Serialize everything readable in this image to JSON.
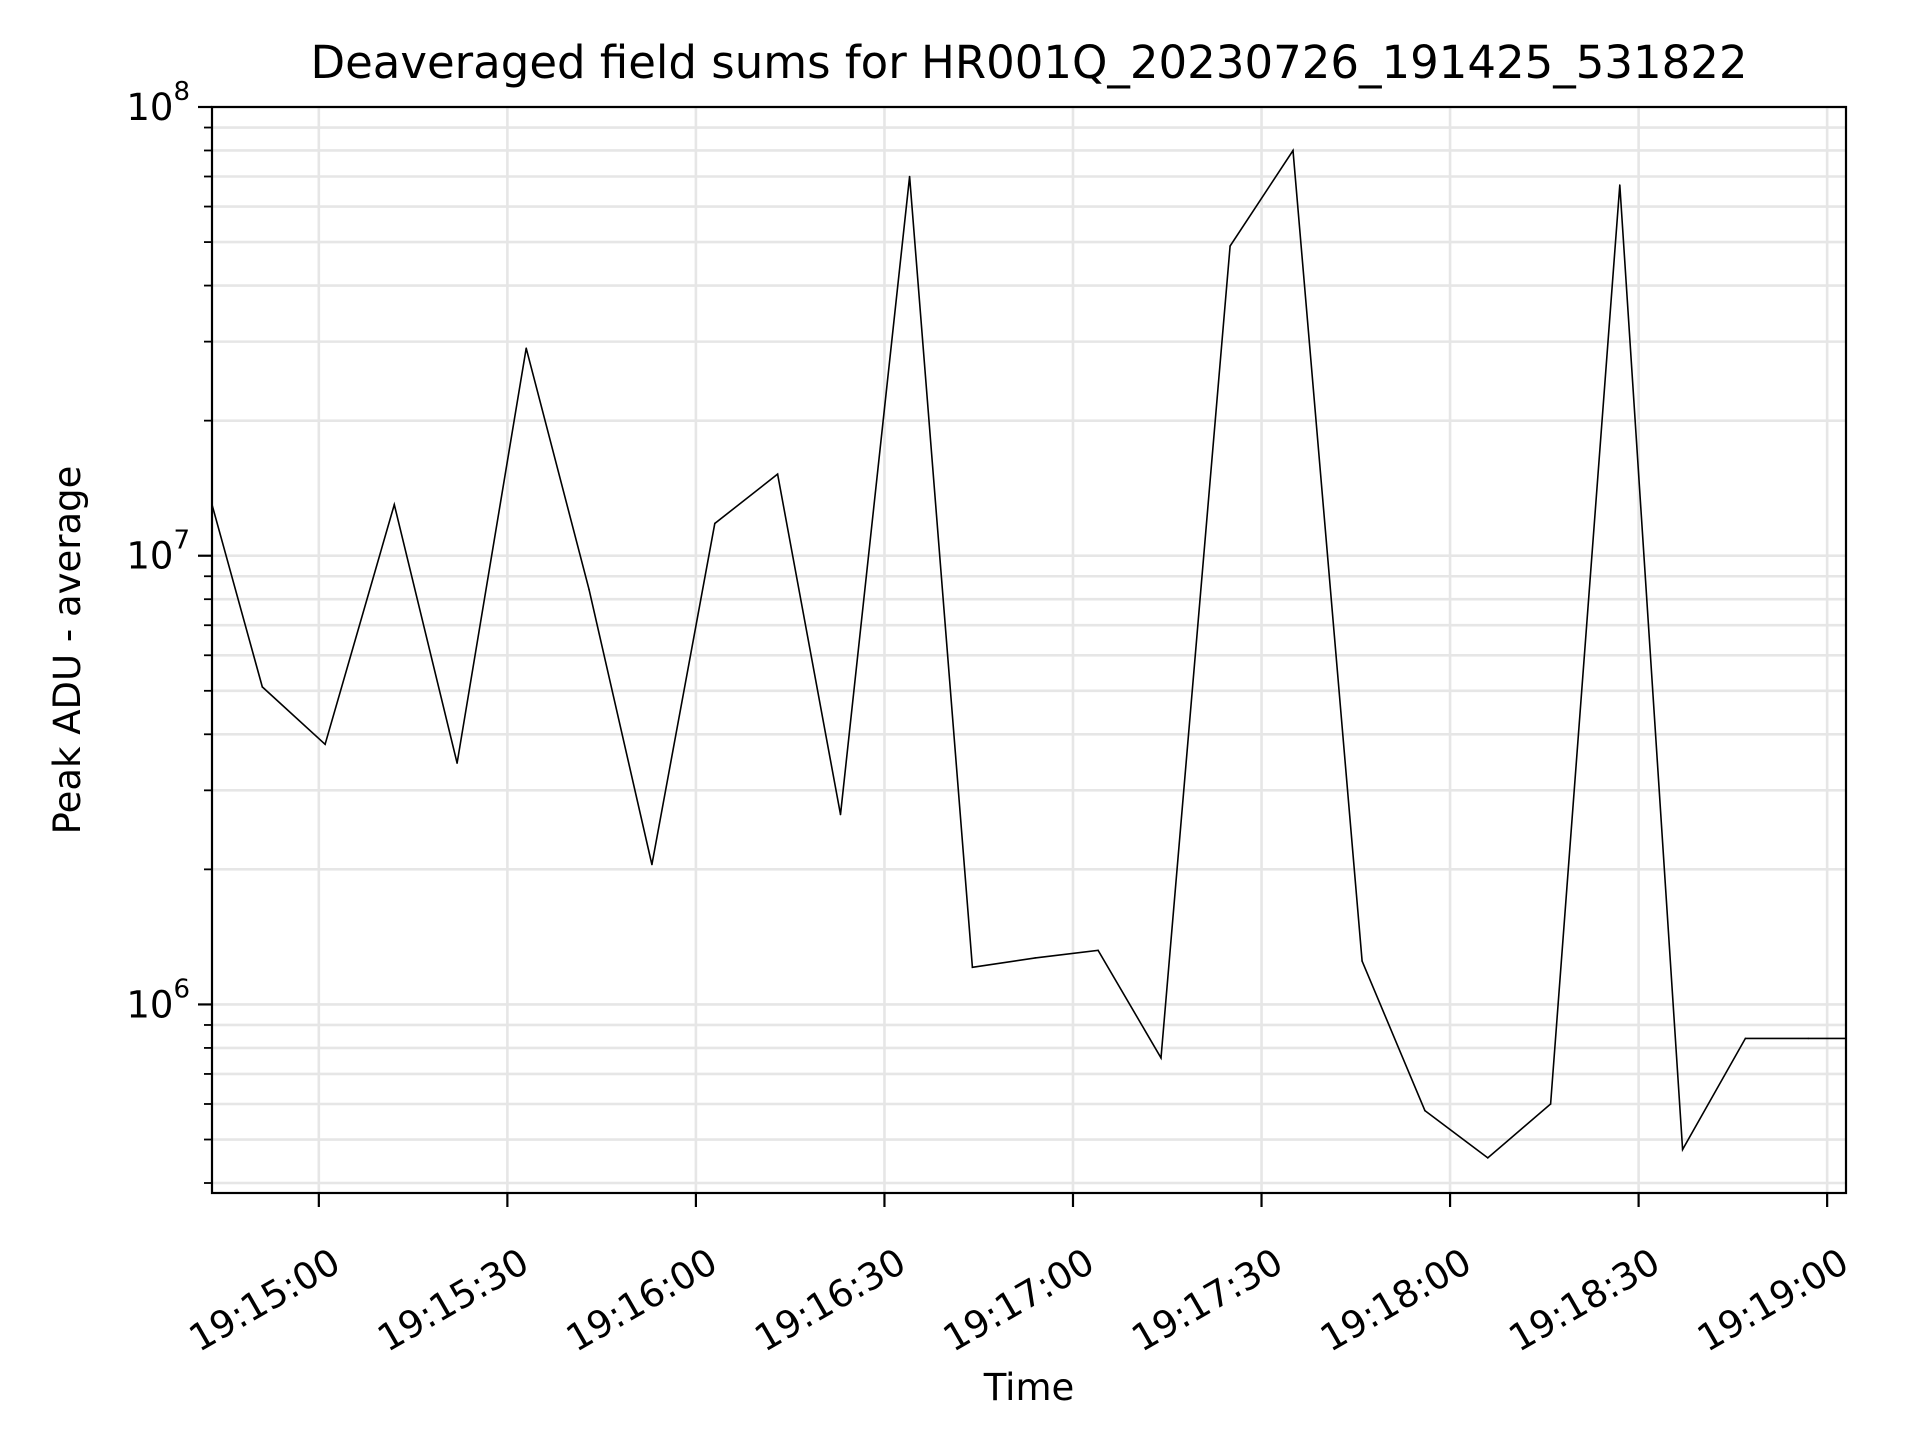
{
  "chart_data": {
    "type": "line",
    "title": "Deaveraged field sums for HR001Q_20230726_191425_531822",
    "xlabel": "Time",
    "ylabel": "Peak ADU - average",
    "yscale": "log",
    "xlim": [
      "19:14:43",
      "19:19:03"
    ],
    "ylim": [
      380000,
      100000000
    ],
    "x_ticks": [
      "19:15:00",
      "19:15:30",
      "19:16:00",
      "19:16:30",
      "19:17:00",
      "19:17:30",
      "19:18:00",
      "19:18:30",
      "19:19:00"
    ],
    "y_ticks": [
      {
        "base": "10",
        "exp": "6",
        "value": 1000000
      },
      {
        "base": "10",
        "exp": "7",
        "value": 10000000
      },
      {
        "base": "10",
        "exp": "8",
        "value": 100000000
      }
    ],
    "grid": true,
    "line_color": "#000000",
    "grid_color": "#e6e6e6",
    "series": [
      {
        "x": [
          "19:14:43",
          "19:14:51",
          "19:15:01",
          "19:15:12",
          "19:15:22",
          "19:15:33",
          "19:15:43",
          "19:15:53",
          "19:16:03",
          "19:16:13",
          "19:16:23",
          "19:16:34",
          "19:16:44",
          "19:16:54",
          "19:17:04",
          "19:17:14",
          "19:17:25",
          "19:17:35",
          "19:17:46",
          "19:17:56",
          "19:18:06",
          "19:18:16",
          "19:18:27",
          "19:18:37",
          "19:18:47",
          "19:18:57",
          "19:19:03"
        ],
        "y": [
          13000000,
          5100000,
          3800000,
          13000000,
          3450000,
          29000000,
          8400000,
          2050000,
          11800000,
          15200000,
          2650000,
          70000000,
          1210000,
          1270000,
          1320000,
          760000,
          49000000,
          80000000,
          1250000,
          580000,
          455000,
          600000,
          67000000,
          475000,
          840000,
          840000,
          840000
        ]
      }
    ]
  }
}
